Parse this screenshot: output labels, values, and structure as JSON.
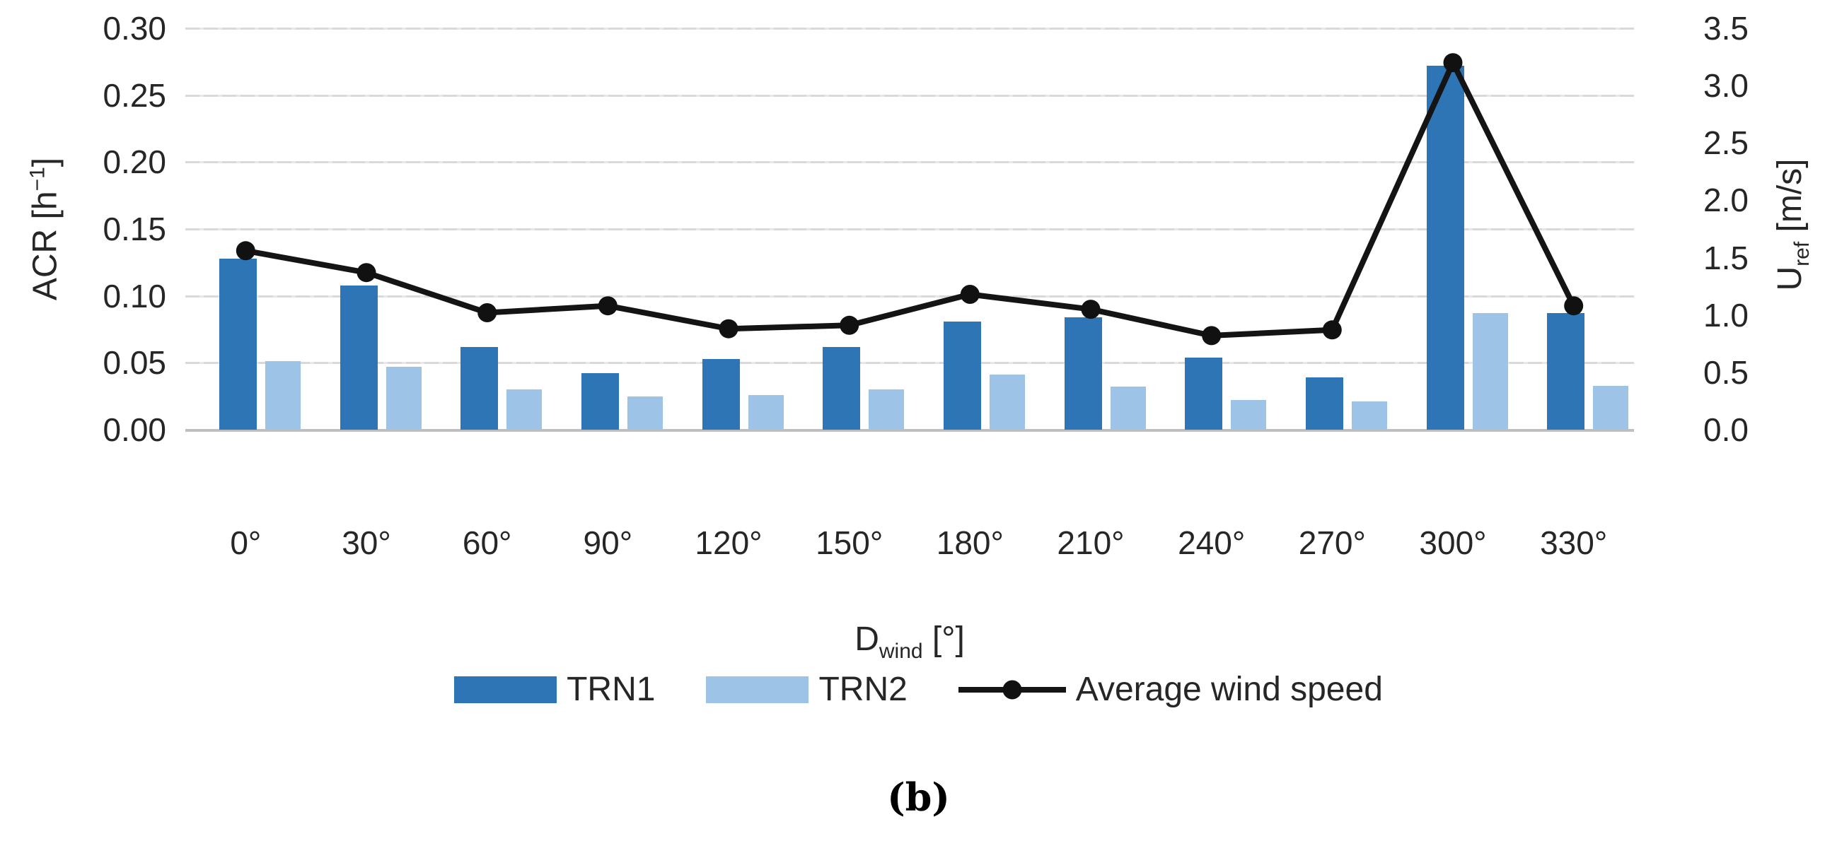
{
  "figure": {
    "caption": "(b)"
  },
  "axes": {
    "left": {
      "title_pre": "ACR [h",
      "title_sup": "−1",
      "title_post": "]",
      "ticks": [
        "0.30",
        "0.25",
        "0.20",
        "0.15",
        "0.10",
        "0.05",
        "0.00"
      ]
    },
    "right": {
      "title_pre": "U",
      "title_sub": "ref",
      "title_post": " [m/s]",
      "ticks": [
        "3.5",
        "3.0",
        "2.5",
        "2.0",
        "1.5",
        "1.0",
        "0.5",
        "0.0"
      ]
    },
    "x": {
      "title_pre": "D",
      "title_sub": "wind",
      "title_post": " [°]"
    }
  },
  "legend": [
    {
      "label": "TRN1",
      "swatch": "bar",
      "color": "#2E75B6"
    },
    {
      "label": "TRN2",
      "swatch": "bar",
      "color": "#9DC3E6"
    },
    {
      "label": "Average wind speed",
      "swatch": "line",
      "color": "#141414"
    }
  ],
  "colors": {
    "trn1": "#2E75B6",
    "trn2": "#9DC3E6",
    "line": "#141414",
    "gridline": "#D9D9D9",
    "baseline": "#BFBFBF"
  },
  "chart_data": {
    "type": "combo-bar-line",
    "categories": [
      "0°",
      "30°",
      "60°",
      "90°",
      "120°",
      "150°",
      "180°",
      "210°",
      "240°",
      "270°",
      "300°",
      "330°"
    ],
    "series": [
      {
        "name": "TRN1",
        "type": "bar",
        "axis": "left",
        "color": "#2E75B6",
        "values": [
          0.128,
          0.108,
          0.062,
          0.042,
          0.053,
          0.062,
          0.081,
          0.084,
          0.054,
          0.039,
          0.272,
          0.087
        ]
      },
      {
        "name": "TRN2",
        "type": "bar",
        "axis": "left",
        "color": "#9DC3E6",
        "values": [
          0.051,
          0.047,
          0.03,
          0.025,
          0.026,
          0.03,
          0.041,
          0.032,
          0.022,
          0.021,
          0.087,
          0.033
        ]
      },
      {
        "name": "Average wind speed",
        "type": "line",
        "axis": "right",
        "color": "#141414",
        "values": [
          1.56,
          1.37,
          1.02,
          1.08,
          0.88,
          0.91,
          1.18,
          1.05,
          0.82,
          0.87,
          3.2,
          1.08
        ]
      }
    ],
    "left_axis": {
      "label": "ACR [h⁻¹]",
      "range": [
        0,
        0.3
      ],
      "tick_step": 0.05
    },
    "right_axis": {
      "label": "U_ref [m/s]",
      "range": [
        0,
        3.5
      ],
      "tick_step": 0.5
    },
    "x_axis": {
      "label": "D_wind [°]"
    },
    "grid": true,
    "legend_position": "bottom",
    "title": "",
    "caption": "(b)"
  }
}
